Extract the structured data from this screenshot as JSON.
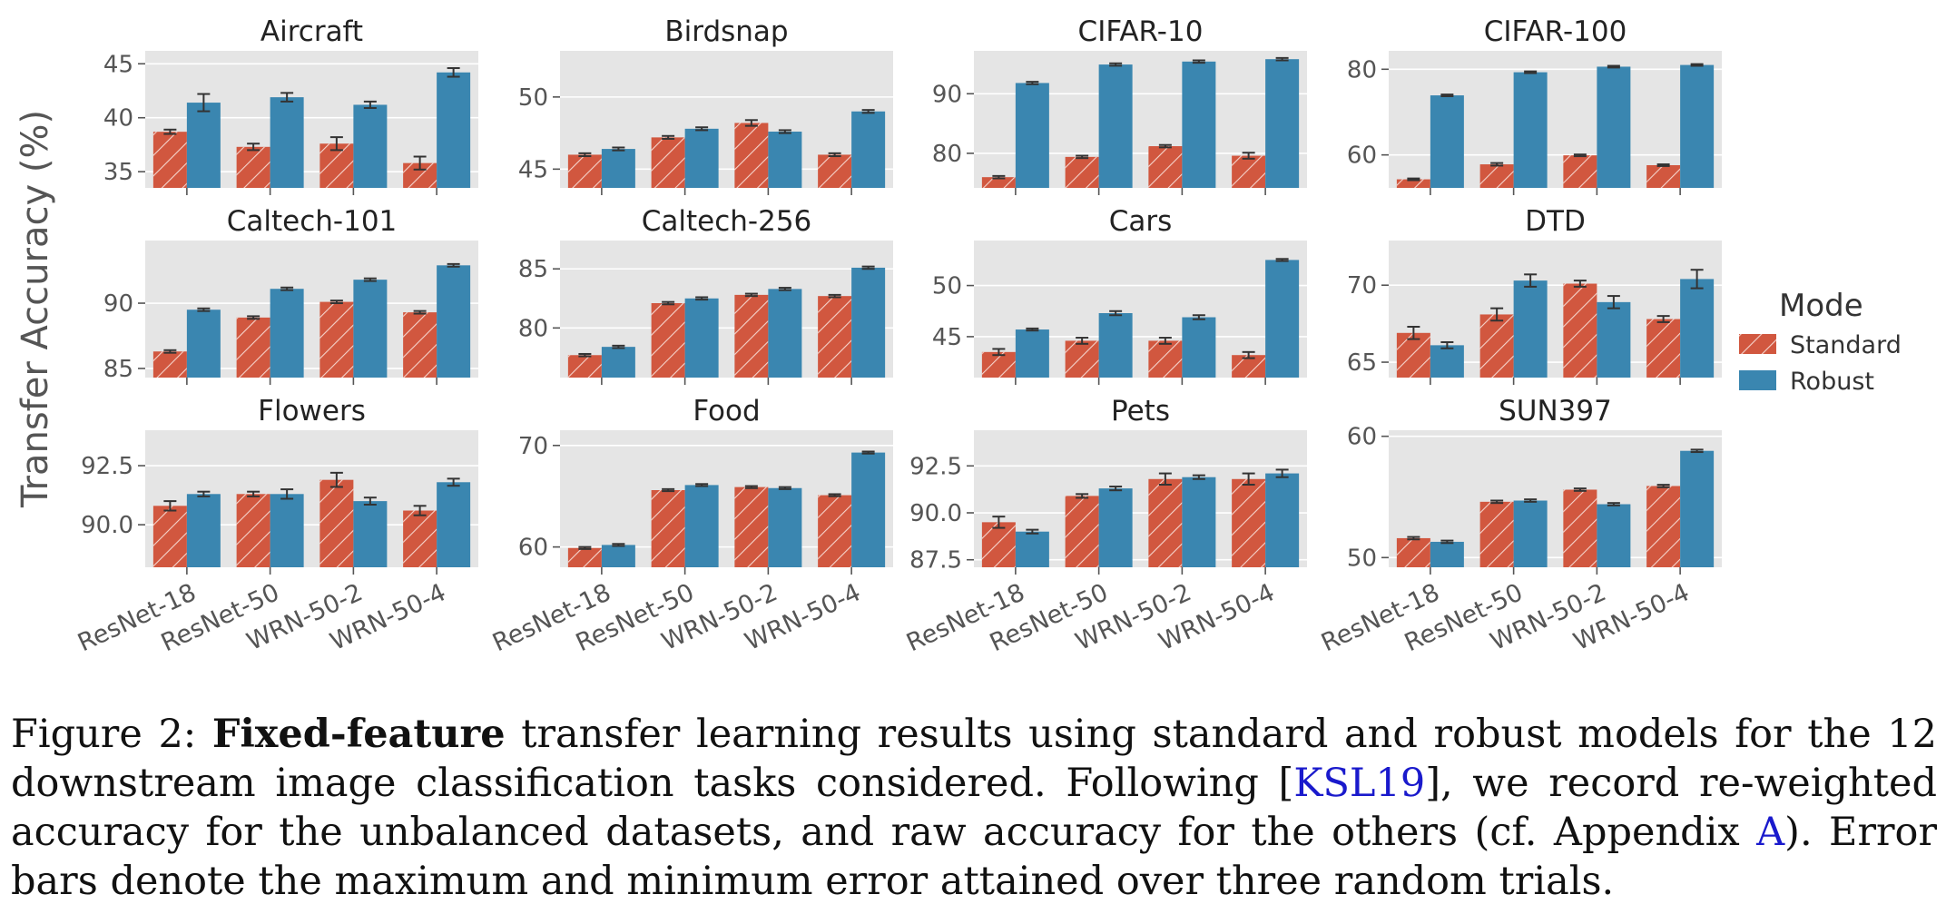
{
  "figure": {
    "ylabel": "Transfer Accuracy (%)",
    "legend": {
      "title": "Mode",
      "entries": [
        {
          "name": "Standard",
          "color": "#d1573f"
        },
        {
          "name": "Robust",
          "color": "#3a86b0"
        }
      ],
      "placement": "right"
    }
  },
  "caption": {
    "prefix": "Figure 2: ",
    "bold": "Fixed-feature",
    "part1": " transfer learning results using standard and robust models for the 12 downstream image classification tasks considered. Following [",
    "ref1": "KSL19",
    "part2": "], we record re-weighted accuracy for the unbalanced datasets, and raw accuracy for the others (cf. Appendix ",
    "ref2": "A",
    "part3": "). Error bars denote the maximum and minimum error attained over three random trials."
  },
  "chart_data": [
    {
      "type": "bar",
      "title": "Aircraft",
      "categories": [
        "ResNet-18",
        "ResNet-50",
        "WRN-50-2",
        "WRN-50-4"
      ],
      "ylim": [
        33.5,
        46.2
      ],
      "yticks": [
        "35",
        "40",
        "45"
      ],
      "series": [
        {
          "name": "Standard",
          "values": [
            38.7,
            37.3,
            37.6,
            35.8
          ],
          "err": [
            0.2,
            0.3,
            0.6,
            0.6
          ]
        },
        {
          "name": "Robust",
          "values": [
            41.4,
            41.9,
            41.2,
            44.2
          ],
          "err": [
            0.8,
            0.4,
            0.3,
            0.4
          ]
        }
      ]
    },
    {
      "type": "bar",
      "title": "Birdsnap",
      "categories": [
        "ResNet-18",
        "ResNet-50",
        "WRN-50-2",
        "WRN-50-4"
      ],
      "ylim": [
        43.7,
        53.2
      ],
      "yticks": [
        "45",
        "50"
      ],
      "series": [
        {
          "name": "Standard",
          "values": [
            46.0,
            47.2,
            48.2,
            46.0
          ],
          "err": [
            0.1,
            0.1,
            0.2,
            0.1
          ]
        },
        {
          "name": "Robust",
          "values": [
            46.4,
            47.8,
            47.6,
            49.0
          ],
          "err": [
            0.1,
            0.1,
            0.1,
            0.1
          ]
        }
      ]
    },
    {
      "type": "bar",
      "title": "CIFAR-10",
      "categories": [
        "ResNet-18",
        "ResNet-50",
        "WRN-50-2",
        "WRN-50-4"
      ],
      "ylim": [
        74.2,
        97.2
      ],
      "yticks": [
        "80",
        "90"
      ],
      "series": [
        {
          "name": "Standard",
          "values": [
            76.0,
            79.4,
            81.2,
            79.6
          ],
          "err": [
            0.2,
            0.2,
            0.2,
            0.5
          ]
        },
        {
          "name": "Robust",
          "values": [
            91.8,
            94.9,
            95.4,
            95.8
          ],
          "err": [
            0.2,
            0.2,
            0.2,
            0.2
          ]
        }
      ]
    },
    {
      "type": "bar",
      "title": "CIFAR-100",
      "categories": [
        "ResNet-18",
        "ResNet-50",
        "WRN-50-2",
        "WRN-50-4"
      ],
      "ylim": [
        52.3,
        84.3
      ],
      "yticks": [
        "60",
        "80"
      ],
      "series": [
        {
          "name": "Standard",
          "values": [
            54.3,
            57.8,
            59.9,
            57.6
          ],
          "err": [
            0.2,
            0.3,
            0.2,
            0.2
          ]
        },
        {
          "name": "Robust",
          "values": [
            73.9,
            79.3,
            80.6,
            81.0
          ],
          "err": [
            0.2,
            0.2,
            0.2,
            0.2
          ]
        }
      ]
    },
    {
      "type": "bar",
      "title": "Caltech-101",
      "categories": [
        "ResNet-18",
        "ResNet-50",
        "WRN-50-2",
        "WRN-50-4"
      ],
      "ylim": [
        84.3,
        94.8
      ],
      "yticks": [
        "85",
        "90"
      ],
      "series": [
        {
          "name": "Standard",
          "values": [
            86.3,
            88.9,
            90.1,
            89.3
          ],
          "err": [
            0.1,
            0.1,
            0.1,
            0.1
          ]
        },
        {
          "name": "Robust",
          "values": [
            89.5,
            91.1,
            91.8,
            92.9
          ],
          "err": [
            0.1,
            0.1,
            0.1,
            0.1
          ]
        }
      ]
    },
    {
      "type": "bar",
      "title": "Caltech-256",
      "categories": [
        "ResNet-18",
        "ResNet-50",
        "WRN-50-2",
        "WRN-50-4"
      ],
      "ylim": [
        75.8,
        87.4
      ],
      "yticks": [
        "80",
        "85"
      ],
      "series": [
        {
          "name": "Standard",
          "values": [
            77.7,
            82.1,
            82.8,
            82.7
          ],
          "err": [
            0.1,
            0.1,
            0.1,
            0.1
          ]
        },
        {
          "name": "Robust",
          "values": [
            78.4,
            82.5,
            83.3,
            85.1
          ],
          "err": [
            0.1,
            0.1,
            0.1,
            0.1
          ]
        }
      ]
    },
    {
      "type": "bar",
      "title": "Cars",
      "categories": [
        "ResNet-18",
        "ResNet-50",
        "WRN-50-2",
        "WRN-50-4"
      ],
      "ylim": [
        41.0,
        54.4
      ],
      "yticks": [
        "45",
        "50"
      ],
      "series": [
        {
          "name": "Standard",
          "values": [
            43.5,
            44.6,
            44.6,
            43.2
          ],
          "err": [
            0.3,
            0.3,
            0.3,
            0.3
          ]
        },
        {
          "name": "Robust",
          "values": [
            45.7,
            47.3,
            46.9,
            52.5
          ],
          "err": [
            0.1,
            0.2,
            0.2,
            0.1
          ]
        }
      ]
    },
    {
      "type": "bar",
      "title": "DTD",
      "categories": [
        "ResNet-18",
        "ResNet-50",
        "WRN-50-2",
        "WRN-50-4"
      ],
      "ylim": [
        64.0,
        72.9
      ],
      "yticks": [
        "65",
        "70"
      ],
      "series": [
        {
          "name": "Standard",
          "values": [
            66.9,
            68.1,
            70.1,
            67.8
          ],
          "err": [
            0.4,
            0.4,
            0.2,
            0.2
          ]
        },
        {
          "name": "Robust",
          "values": [
            66.1,
            70.3,
            68.9,
            70.4
          ],
          "err": [
            0.2,
            0.4,
            0.4,
            0.6
          ]
        }
      ]
    },
    {
      "type": "bar",
      "title": "Flowers",
      "categories": [
        "ResNet-18",
        "ResNet-50",
        "WRN-50-2",
        "WRN-50-4"
      ],
      "ylim": [
        88.2,
        94.0
      ],
      "yticks": [
        "90.0",
        "92.5"
      ],
      "series": [
        {
          "name": "Standard",
          "values": [
            90.8,
            91.3,
            91.9,
            90.6
          ],
          "err": [
            0.2,
            0.1,
            0.3,
            0.2
          ]
        },
        {
          "name": "Robust",
          "values": [
            91.3,
            91.3,
            91.0,
            91.8
          ],
          "err": [
            0.1,
            0.2,
            0.15,
            0.15
          ]
        }
      ]
    },
    {
      "type": "bar",
      "title": "Food",
      "categories": [
        "ResNet-18",
        "ResNet-50",
        "WRN-50-2",
        "WRN-50-4"
      ],
      "ylim": [
        58.0,
        71.5
      ],
      "yticks": [
        "60",
        "70"
      ],
      "series": [
        {
          "name": "Standard",
          "values": [
            59.9,
            65.6,
            65.9,
            65.1
          ],
          "err": [
            0.1,
            0.1,
            0.1,
            0.1
          ]
        },
        {
          "name": "Robust",
          "values": [
            60.2,
            66.1,
            65.8,
            69.3
          ],
          "err": [
            0.1,
            0.1,
            0.1,
            0.1
          ]
        }
      ]
    },
    {
      "type": "bar",
      "title": "Pets",
      "categories": [
        "ResNet-18",
        "ResNet-50",
        "WRN-50-2",
        "WRN-50-4"
      ],
      "ylim": [
        87.1,
        94.4
      ],
      "yticks": [
        "87.5",
        "90.0",
        "92.5"
      ],
      "series": [
        {
          "name": "Standard",
          "values": [
            89.5,
            90.9,
            91.8,
            91.8
          ],
          "err": [
            0.3,
            0.1,
            0.3,
            0.3
          ]
        },
        {
          "name": "Robust",
          "values": [
            89.0,
            91.3,
            91.9,
            92.1
          ],
          "err": [
            0.1,
            0.1,
            0.1,
            0.2
          ]
        }
      ]
    },
    {
      "type": "bar",
      "title": "SUN397",
      "categories": [
        "ResNet-18",
        "ResNet-50",
        "WRN-50-2",
        "WRN-50-4"
      ],
      "ylim": [
        49.2,
        60.5
      ],
      "yticks": [
        "50",
        "60"
      ],
      "series": [
        {
          "name": "Standard",
          "values": [
            51.6,
            54.6,
            55.6,
            55.9
          ],
          "err": [
            0.1,
            0.1,
            0.1,
            0.1
          ]
        },
        {
          "name": "Robust",
          "values": [
            51.3,
            54.7,
            54.4,
            58.8
          ],
          "err": [
            0.1,
            0.1,
            0.1,
            0.1
          ]
        }
      ]
    }
  ]
}
